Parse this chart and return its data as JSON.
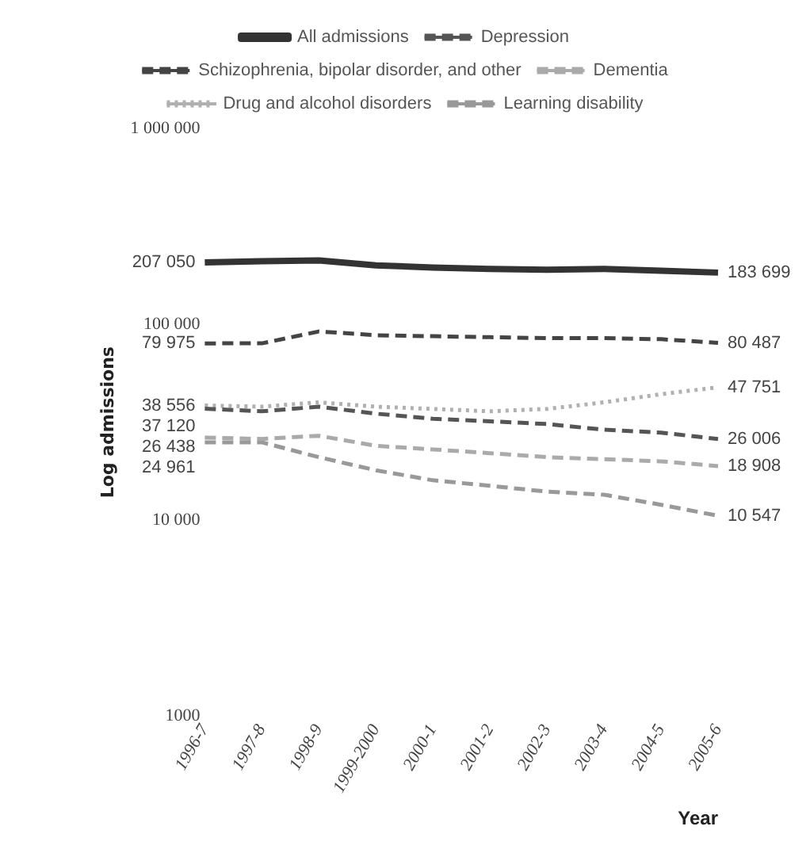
{
  "chart_data": {
    "type": "line",
    "ylabel": "Log admissions",
    "xlabel": "Year",
    "log": true,
    "categories": [
      "1996-7",
      "1997-8",
      "1998-9",
      "1999-2000",
      "2000-1",
      "2001-2",
      "2002-3",
      "2003-4",
      "2004-5",
      "2005-6"
    ],
    "ylim": [
      1000,
      1000000
    ],
    "yticks": [
      {
        "value": 1000,
        "label": "1000"
      },
      {
        "value": 10000,
        "label": "10 000"
      },
      {
        "value": 100000,
        "label": "100 000"
      },
      {
        "value": 1000000,
        "label": "1 000 000"
      }
    ],
    "grid": false,
    "legend": "top",
    "marker": "none",
    "series": [
      {
        "name": "All admissions",
        "color": "#333333",
        "line_style": "solid",
        "values": [
          207050,
          210000,
          212000,
          200000,
          195000,
          192000,
          190000,
          192000,
          188000,
          183699
        ],
        "value_labels": [
          "207 050",
          null,
          null,
          null,
          null,
          null,
          null,
          null,
          null,
          "183 699"
        ]
      },
      {
        "name": "Depression",
        "color": "#555555",
        "line_style": "dashed",
        "values": [
          37120,
          36000,
          38000,
          35000,
          33000,
          32000,
          31000,
          29000,
          28000,
          26006
        ],
        "value_labels": [
          "37 120",
          null,
          null,
          null,
          null,
          null,
          null,
          null,
          null,
          "26 006"
        ]
      },
      {
        "name": "Schizophrenia, bipolar disorder, and other",
        "color": "#444444",
        "line_style": "dashed",
        "values": [
          79975,
          80000,
          92000,
          88000,
          87000,
          86000,
          85000,
          85000,
          84000,
          80487
        ],
        "value_labels": [
          "79 975",
          null,
          null,
          null,
          null,
          null,
          null,
          null,
          null,
          "80 487"
        ]
      },
      {
        "name": "Dementia",
        "color": "#aaaaaa",
        "line_style": "dashed",
        "values": [
          26438,
          26000,
          27000,
          24000,
          23000,
          22000,
          21000,
          20500,
          20000,
          18908
        ],
        "value_labels": [
          "26 438",
          null,
          null,
          null,
          null,
          null,
          null,
          null,
          null,
          "18 908"
        ]
      },
      {
        "name": "Drug and alcohol disorders",
        "color": "#b0b0b0",
        "line_style": "dotted",
        "values": [
          38556,
          38000,
          40000,
          38000,
          37000,
          36000,
          37000,
          40000,
          44000,
          47751
        ],
        "value_labels": [
          "38 556",
          null,
          null,
          null,
          null,
          null,
          null,
          null,
          null,
          "47 751"
        ]
      },
      {
        "name": "Learning disability",
        "color": "#999999",
        "line_style": "dashed",
        "values": [
          24961,
          25000,
          21000,
          18000,
          16000,
          15000,
          14000,
          13500,
          12000,
          10547
        ],
        "value_labels": [
          "24 961",
          null,
          null,
          null,
          null,
          null,
          null,
          null,
          null,
          "10 547"
        ]
      }
    ]
  }
}
